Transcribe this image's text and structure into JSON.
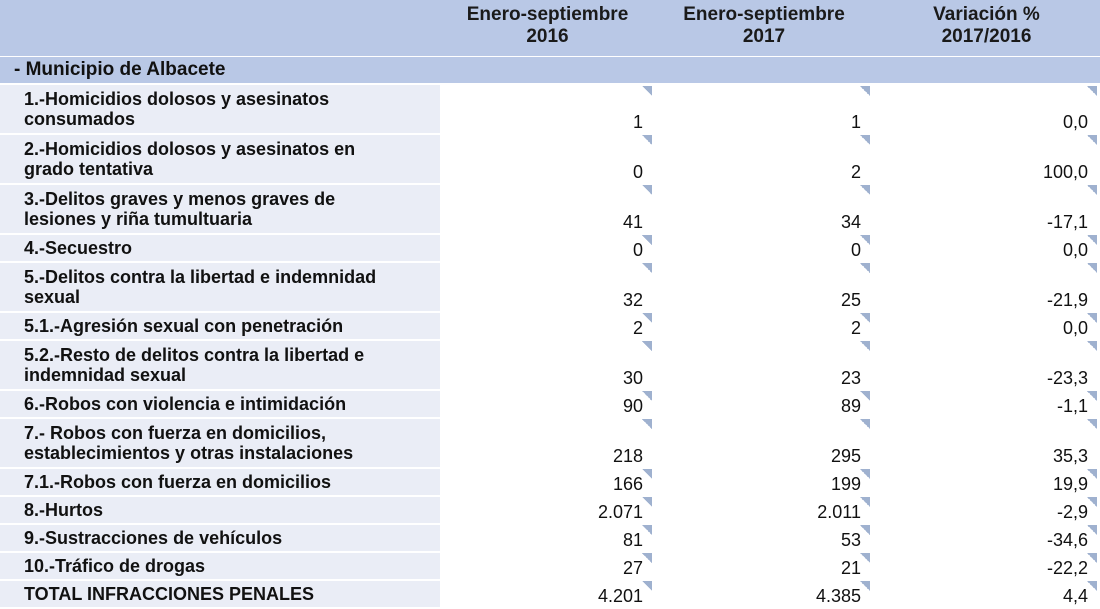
{
  "header": {
    "col1": [
      "Enero-septiembre",
      "2016"
    ],
    "col2": [
      "Enero-septiembre",
      "2017"
    ],
    "col3": [
      "Variación %",
      "2017/2016"
    ]
  },
  "section": "- Municipio de Albacete",
  "rows": [
    {
      "label": [
        "1.-Homicidios dolosos y asesinatos",
        "consumados"
      ],
      "v2016": "1",
      "v2017": "1",
      "var": "0,0"
    },
    {
      "label": [
        "2.-Homicidios dolosos y asesinatos en",
        "grado tentativa"
      ],
      "v2016": "0",
      "v2017": "2",
      "var": "100,0"
    },
    {
      "label": [
        "3.-Delitos graves y menos graves de",
        "lesiones y riña tumultuaria"
      ],
      "v2016": "41",
      "v2017": "34",
      "var": "-17,1"
    },
    {
      "label": [
        "4.-Secuestro"
      ],
      "v2016": "0",
      "v2017": "0",
      "var": "0,0"
    },
    {
      "label": [
        "5.-Delitos contra la libertad e indemnidad",
        "sexual"
      ],
      "v2016": "32",
      "v2017": "25",
      "var": "-21,9"
    },
    {
      "label": [
        "5.1.-Agresión sexual con penetración"
      ],
      "v2016": "2",
      "v2017": "2",
      "var": "0,0"
    },
    {
      "label": [
        "5.2.-Resto de delitos contra la libertad e",
        "indemnidad sexual"
      ],
      "v2016": "30",
      "v2017": "23",
      "var": "-23,3"
    },
    {
      "label": [
        "6.-Robos con violencia e intimidación"
      ],
      "v2016": "90",
      "v2017": "89",
      "var": "-1,1"
    },
    {
      "label": [
        "7.- Robos con fuerza en domicilios,",
        "establecimientos y otras instalaciones"
      ],
      "v2016": "218",
      "v2017": "295",
      "var": "35,3"
    },
    {
      "label": [
        "7.1.-Robos con fuerza en domicilios"
      ],
      "v2016": "166",
      "v2017": "199",
      "var": "19,9"
    },
    {
      "label": [
        "8.-Hurtos"
      ],
      "v2016": "2.071",
      "v2017": "2.011",
      "var": "-2,9"
    },
    {
      "label": [
        "9.-Sustracciones de vehículos"
      ],
      "v2016": "81",
      "v2017": "53",
      "var": "-34,6"
    },
    {
      "label": [
        "10.-Tráfico de drogas"
      ],
      "v2016": "27",
      "v2017": "21",
      "var": "-22,2"
    },
    {
      "label": [
        "TOTAL INFRACCIONES PENALES"
      ],
      "v2016": "4.201",
      "v2017": "4.385",
      "var": "4,4"
    }
  ]
}
